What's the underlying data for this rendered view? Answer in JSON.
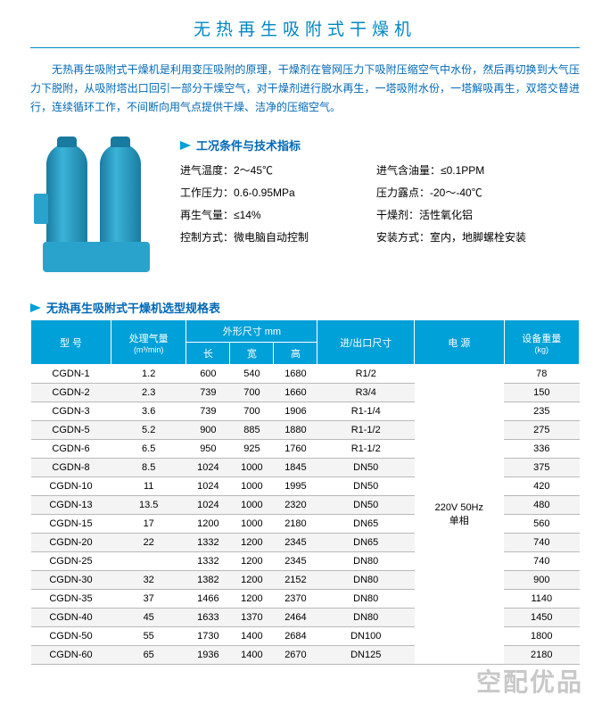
{
  "title": "无热再生吸附式干燥机",
  "intro": "无热再生吸附式干燥机是利用变压吸附的原理，干燥剂在管网压力下吸附压缩空气中水份，然后再切换到大气压力下脱附，从吸附塔出口回引一部分干燥空气，对干燥剂进行脱水再生，一塔吸附水份，一塔解吸再生，双塔交替进行，连续循环工作，不间断向用气点提供干燥、洁净的压缩空气。",
  "spec_heading": "工况条件与技术指标",
  "specs": {
    "r1c1": "进气温度：2～45℃",
    "r1c2": "进气含油量：≤0.1PPM",
    "r2c1": "工作压力：0.6-0.95MPa",
    "r2c2": "压力露点：-20～-40℃",
    "r3c1": "再生气量：≤14%",
    "r3c2": "干燥剂：活性氧化铝",
    "r4c1": "控制方式：微电脑自动控制",
    "r4c2": "安装方式：室内，地脚螺栓安装"
  },
  "table_heading": "无热再生吸附式干燥机选型规格表",
  "columns": {
    "model": "型 号",
    "flow": "处理气量",
    "flow_unit": "(m³/min)",
    "dim": "外形尺寸 mm",
    "L": "长",
    "W": "宽",
    "H": "高",
    "port": "进/出口尺寸",
    "power": "电 源",
    "weight": "设备重量",
    "weight_unit": "(kg)"
  },
  "power_cell": "220V 50Hz\n单相",
  "rows": [
    {
      "m": "CGDN-1",
      "f": "1.2",
      "l": "600",
      "w": "540",
      "h": "1680",
      "p": "R1/2",
      "kg": "78"
    },
    {
      "m": "CGDN-2",
      "f": "2.3",
      "l": "739",
      "w": "700",
      "h": "1660",
      "p": "R3/4",
      "kg": "150"
    },
    {
      "m": "CGDN-3",
      "f": "3.6",
      "l": "739",
      "w": "700",
      "h": "1906",
      "p": "R1-1/4",
      "kg": "235"
    },
    {
      "m": "CGDN-5",
      "f": "5.2",
      "l": "900",
      "w": "885",
      "h": "1880",
      "p": "R1-1/2",
      "kg": "275"
    },
    {
      "m": "CGDN-6",
      "f": "6.5",
      "l": "950",
      "w": "925",
      "h": "1760",
      "p": "R1-1/2",
      "kg": "336"
    },
    {
      "m": "CGDN-8",
      "f": "8.5",
      "l": "1024",
      "w": "1000",
      "h": "1845",
      "p": "DN50",
      "kg": "375"
    },
    {
      "m": "CGDN-10",
      "f": "11",
      "l": "1024",
      "w": "1000",
      "h": "1995",
      "p": "DN50",
      "kg": "420"
    },
    {
      "m": "CGDN-13",
      "f": "13.5",
      "l": "1024",
      "w": "1000",
      "h": "2320",
      "p": "DN50",
      "kg": "480"
    },
    {
      "m": "CGDN-15",
      "f": "17",
      "l": "1200",
      "w": "1000",
      "h": "2180",
      "p": "DN65",
      "kg": "560"
    },
    {
      "m": "CGDN-20",
      "f": "22",
      "l": "1332",
      "w": "1200",
      "h": "2345",
      "p": "DN65",
      "kg": "740"
    },
    {
      "m": "CGDN-25",
      "f": "",
      "l": "1332",
      "w": "1200",
      "h": "2345",
      "p": "DN80",
      "kg": "740"
    },
    {
      "m": "CGDN-30",
      "f": "32",
      "l": "1382",
      "w": "1200",
      "h": "2152",
      "p": "DN80",
      "kg": "900"
    },
    {
      "m": "CGDN-35",
      "f": "37",
      "l": "1466",
      "w": "1200",
      "h": "2370",
      "p": "DN80",
      "kg": "1140"
    },
    {
      "m": "CGDN-40",
      "f": "45",
      "l": "1633",
      "w": "1370",
      "h": "2464",
      "p": "DN80",
      "kg": "1450"
    },
    {
      "m": "CGDN-50",
      "f": "55",
      "l": "1730",
      "w": "1400",
      "h": "2684",
      "p": "DN100",
      "kg": "1800"
    },
    {
      "m": "CGDN-60",
      "f": "65",
      "l": "1936",
      "w": "1400",
      "h": "2670",
      "p": "DN125",
      "kg": "2180"
    }
  ],
  "watermark": "空配优品",
  "style": {
    "accent": "#00a0d8",
    "text_blue": "#0068b7",
    "title_blue": "#0088c4",
    "row_alt": "#f4f4f4",
    "border": "#b9b9b9"
  }
}
